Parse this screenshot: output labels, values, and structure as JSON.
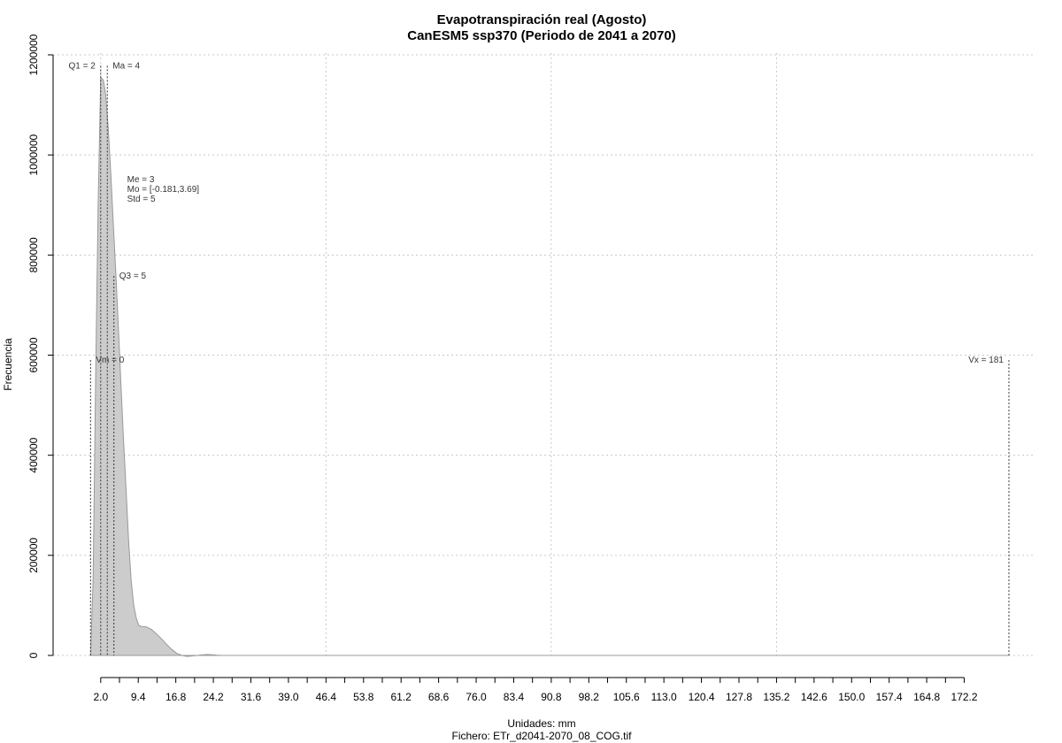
{
  "chart_data": {
    "type": "area",
    "title": "Evapotranspiración real (Agosto)",
    "subtitle": "CanESM5 ssp370 (Periodo de 2041 a 2070)",
    "xlabel": "Unidades: mm",
    "ylabel": "Frecuencia",
    "footer": "Fichero: ETr_d2041-2070_08_COG.tif",
    "xlim": [
      -2.5,
      183
    ],
    "ylim": [
      0,
      1200000
    ],
    "x_ticks": [
      2.0,
      9.4,
      16.8,
      24.2,
      31.6,
      39.0,
      46.4,
      53.8,
      61.2,
      68.6,
      76.0,
      83.4,
      90.8,
      98.2,
      105.6,
      113.0,
      120.4,
      127.8,
      135.2,
      142.6,
      150.0,
      157.4,
      164.8,
      172.2
    ],
    "x_tick_labels": [
      "2.0",
      "9.4",
      "16.8",
      "24.2",
      "31.6",
      "39.0",
      "46.4",
      "53.8",
      "61.2",
      "68.6",
      "76.0",
      "83.4",
      "90.8",
      "98.2",
      "105.6",
      "113.0",
      "120.4",
      "127.8",
      "135.2",
      "142.6",
      "150.0",
      "157.4",
      "164.8",
      "172.2"
    ],
    "y_ticks": [
      0,
      200000,
      400000,
      600000,
      800000,
      1000000,
      1200000
    ],
    "y_tick_labels": [
      "0",
      "200000",
      "400000",
      "600000",
      "800000",
      "1000000",
      "1200000"
    ],
    "x_grid": [
      2.0,
      46.4,
      90.8,
      135.2
    ],
    "grid": true,
    "fill_color": "#cccccc",
    "line_color": "#999999",
    "series": [
      {
        "x": [
          0,
          0.5,
          1,
          1.5,
          2,
          2.5,
          3,
          3.5,
          4,
          4.5,
          5,
          5.5,
          6,
          6.5,
          7,
          7.5,
          8,
          8.5,
          9,
          9.5,
          10,
          11,
          12,
          13,
          14,
          15,
          16,
          17,
          18,
          19,
          20,
          21,
          22,
          23,
          24,
          25,
          26,
          28,
          30,
          40,
          60,
          100,
          140,
          175,
          181
        ],
        "y": [
          0,
          150000,
          560000,
          900000,
          1155000,
          1150000,
          1120000,
          1050000,
          960000,
          860000,
          760000,
          650000,
          540000,
          430000,
          330000,
          230000,
          150000,
          100000,
          75000,
          60000,
          58000,
          57000,
          52000,
          43000,
          33000,
          22000,
          12000,
          4000,
          0,
          -2000,
          -1000,
          0,
          1000,
          2000,
          1500,
          500,
          0,
          0,
          0,
          0,
          0,
          0,
          0,
          0,
          0
        ]
      }
    ],
    "markers": [
      {
        "label": "Vm = 0",
        "x": 0,
        "y_frac": 0.48,
        "align": "left"
      },
      {
        "label": "Q1 = 2",
        "x": 2,
        "y_frac": 0.97,
        "align": "right"
      },
      {
        "label": "Ma = 4",
        "x": 3.3,
        "y_frac": 0.97,
        "align": "left"
      },
      {
        "label": "Q3 = 5",
        "x": 4.6,
        "y_frac": 0.62,
        "align": "left"
      },
      {
        "label": "Vx = 181",
        "x": 181,
        "y_frac": 0.48,
        "align": "right"
      }
    ],
    "stats": [
      "Me = 3",
      "Mo = [-0.181,3.69]",
      "Std = 5"
    ]
  }
}
